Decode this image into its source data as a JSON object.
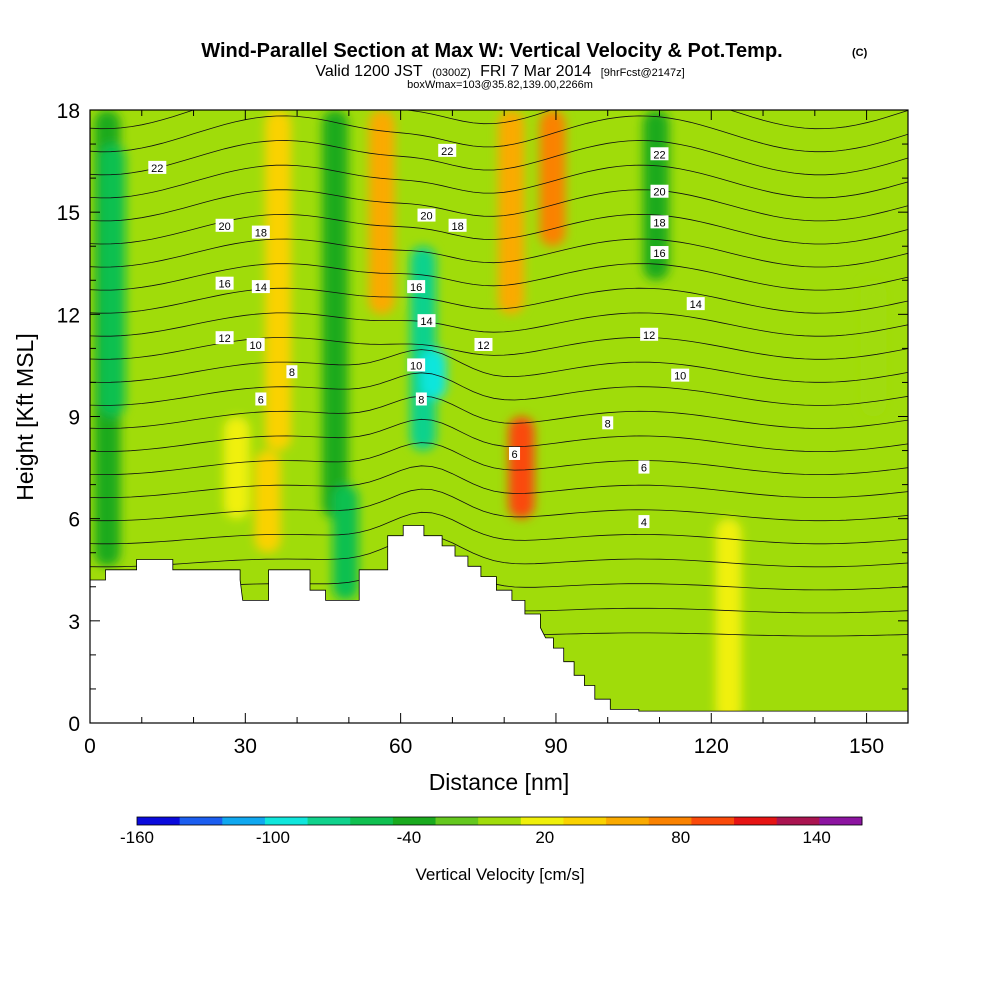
{
  "chart_data": {
    "type": "heatmap",
    "title": "Wind-Parallel Section at Max W: Vertical Velocity & Pot.Temp.",
    "title_mark": "(C)",
    "subtitle_parts": {
      "valid": "Valid 1200 JST",
      "utc": "(0300Z)",
      "date": "FRI 7 Mar 2014",
      "forecast": "[9hrFcst@2147z]"
    },
    "subtitle2": "boxWmax=103@35.82,139.00,2266m",
    "xlabel": "Distance [nm]",
    "ylabel": "Height [Kft MSL]",
    "xlim": [
      0,
      158
    ],
    "ylim": [
      0,
      18
    ],
    "x_ticks": [
      0,
      30,
      60,
      90,
      120,
      150
    ],
    "y_ticks": [
      0,
      3,
      6,
      9,
      12,
      15,
      18
    ],
    "colorbar": {
      "title": "Vertical Velocity [cm/s]",
      "bins": [
        -160,
        -140,
        -120,
        -100,
        -80,
        -60,
        -40,
        -20,
        0,
        20,
        40,
        60,
        80,
        100,
        120,
        140,
        160
      ],
      "colors": [
        "#0a0adc",
        "#1c5ef0",
        "#10a8f0",
        "#10e6dc",
        "#10d28c",
        "#10c050",
        "#1aaa1e",
        "#64c81e",
        "#a0dc0a",
        "#f0f00a",
        "#fad200",
        "#faaa00",
        "#fa8200",
        "#fa4a0a",
        "#e61414",
        "#aa1450",
        "#8c14a0"
      ],
      "labels": [
        -160,
        -100,
        -40,
        20,
        80,
        140
      ]
    },
    "vertical_velocity_field": [
      {
        "x": 2,
        "y_range": [
          4.6,
          18
        ],
        "w": -40
      },
      {
        "x": 3,
        "y_range": [
          9,
          17
        ],
        "w": -60
      },
      {
        "x": 27,
        "y_range": [
          6,
          9
        ],
        "w": 20
      },
      {
        "x": 33,
        "y_range": [
          5,
          8
        ],
        "w": 40
      },
      {
        "x": 35,
        "y_range": [
          8,
          18
        ],
        "w": 40
      },
      {
        "x": 46,
        "y_range": [
          6,
          18
        ],
        "w": -40
      },
      {
        "x": 48,
        "y_range": [
          3.6,
          7
        ],
        "w": -60
      },
      {
        "x": 55,
        "y_range": [
          12,
          18
        ],
        "w": 60
      },
      {
        "x": 63,
        "y_range": [
          8,
          14
        ],
        "w": -80
      },
      {
        "x": 65,
        "y_range": [
          9.5,
          11
        ],
        "w": -100
      },
      {
        "x": 80,
        "y_range": [
          12,
          18
        ],
        "w": 60
      },
      {
        "x": 82,
        "y_range": [
          6,
          9
        ],
        "w": 100
      },
      {
        "x": 88,
        "y_range": [
          14,
          18
        ],
        "w": 80
      },
      {
        "x": 108,
        "y_range": [
          13,
          18
        ],
        "w": -40
      },
      {
        "x": 122,
        "y_range": [
          0,
          6
        ],
        "w": 20
      },
      {
        "x": 150,
        "y_range": [
          9,
          13
        ],
        "w": 0
      }
    ],
    "theta_contours": [
      {
        "level": 4,
        "label_at": [
          107,
          5.9
        ]
      },
      {
        "level": 6,
        "label_at": [
          33,
          9.5
        ]
      },
      {
        "level": 6,
        "label_at": [
          82,
          7.9
        ]
      },
      {
        "level": 6,
        "label_at": [
          107,
          7.5
        ]
      },
      {
        "level": 8,
        "label_at": [
          39,
          10.3
        ]
      },
      {
        "level": 8,
        "label_at": [
          64,
          9.5
        ]
      },
      {
        "level": 8,
        "label_at": [
          100,
          8.8
        ]
      },
      {
        "level": 10,
        "label_at": [
          32,
          11.1
        ]
      },
      {
        "level": 10,
        "label_at": [
          63,
          10.5
        ]
      },
      {
        "level": 10,
        "label_at": [
          114,
          10.2
        ]
      },
      {
        "level": 12,
        "label_at": [
          26,
          11.3
        ]
      },
      {
        "level": 12,
        "label_at": [
          76,
          11.1
        ]
      },
      {
        "level": 12,
        "label_at": [
          108,
          11.4
        ]
      },
      {
        "level": 14,
        "label_at": [
          33,
          12.8
        ]
      },
      {
        "level": 14,
        "label_at": [
          65,
          11.8
        ]
      },
      {
        "level": 14,
        "label_at": [
          117,
          12.3
        ]
      },
      {
        "level": 16,
        "label_at": [
          26,
          12.9
        ]
      },
      {
        "level": 16,
        "label_at": [
          63,
          12.8
        ]
      },
      {
        "level": 16,
        "label_at": [
          110,
          13.8
        ]
      },
      {
        "level": 18,
        "label_at": [
          33,
          14.4
        ]
      },
      {
        "level": 18,
        "label_at": [
          71,
          14.6
        ]
      },
      {
        "level": 18,
        "label_at": [
          110,
          14.7
        ]
      },
      {
        "level": 20,
        "label_at": [
          26,
          14.6
        ]
      },
      {
        "level": 20,
        "label_at": [
          65,
          14.9
        ]
      },
      {
        "level": 20,
        "label_at": [
          110,
          15.6
        ]
      },
      {
        "level": 22,
        "label_at": [
          13,
          16.3
        ]
      },
      {
        "level": 22,
        "label_at": [
          69,
          16.8
        ]
      },
      {
        "level": 22,
        "label_at": [
          110,
          16.7
        ]
      }
    ],
    "terrain": [
      [
        0,
        4.2
      ],
      [
        3,
        4.2
      ],
      [
        3,
        4.5
      ],
      [
        9,
        4.5
      ],
      [
        9,
        4.8
      ],
      [
        16,
        4.8
      ],
      [
        16,
        4.5
      ],
      [
        29,
        4.5
      ],
      [
        29,
        4.2
      ],
      [
        29.5,
        3.6
      ],
      [
        34.5,
        3.6
      ],
      [
        34.5,
        4.5
      ],
      [
        42.5,
        4.5
      ],
      [
        42.5,
        3.9
      ],
      [
        45.5,
        3.9
      ],
      [
        45.5,
        3.6
      ],
      [
        52,
        3.6
      ],
      [
        52,
        4.5
      ],
      [
        57.5,
        4.5
      ],
      [
        57.5,
        5.5
      ],
      [
        60.5,
        5.5
      ],
      [
        60.5,
        5.8
      ],
      [
        64.5,
        5.8
      ],
      [
        64.5,
        5.5
      ],
      [
        68,
        5.5
      ],
      [
        68,
        5.2
      ],
      [
        70.5,
        5.2
      ],
      [
        70.5,
        4.9
      ],
      [
        73,
        4.9
      ],
      [
        73,
        4.6
      ],
      [
        75.5,
        4.6
      ],
      [
        75.5,
        4.3
      ],
      [
        78.5,
        4.3
      ],
      [
        78.5,
        3.9
      ],
      [
        81.5,
        3.9
      ],
      [
        81.5,
        3.6
      ],
      [
        84,
        3.6
      ],
      [
        84,
        3.2
      ],
      [
        87,
        3.2
      ],
      [
        87,
        2.8
      ],
      [
        88,
        2.5
      ],
      [
        89.5,
        2.5
      ],
      [
        89.5,
        2.2
      ],
      [
        91.5,
        2.2
      ],
      [
        91.5,
        1.8
      ],
      [
        93.5,
        1.8
      ],
      [
        93.5,
        1.4
      ],
      [
        95.5,
        1.4
      ],
      [
        95.5,
        1.1
      ],
      [
        97.5,
        1.1
      ],
      [
        97.5,
        0.7
      ],
      [
        100.5,
        0.7
      ],
      [
        100.5,
        0.4
      ],
      [
        106,
        0.4
      ],
      [
        106,
        0.35
      ],
      [
        158,
        0.35
      ]
    ]
  }
}
